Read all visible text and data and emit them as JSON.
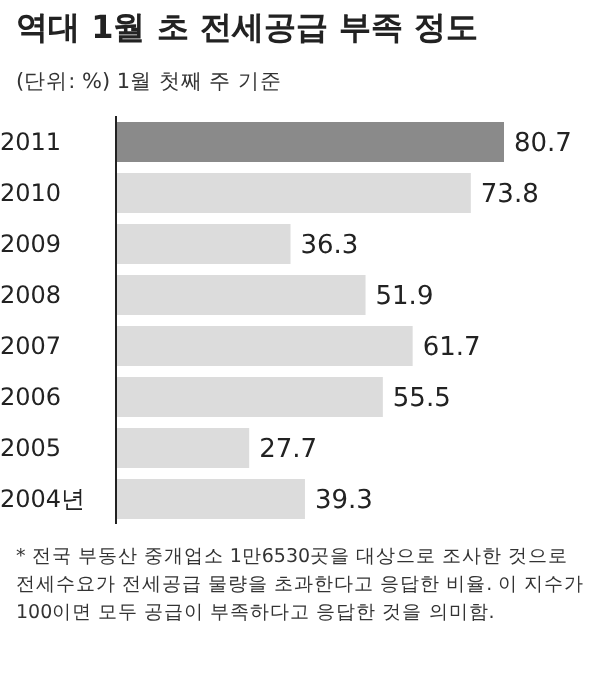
{
  "chart_data": {
    "type": "bar",
    "orientation": "horizontal",
    "title": "역대 1월 초 전세공급 부족 정도",
    "subtitle": "(단위: %) 1월 첫째 주 기준",
    "categories": [
      "2011",
      "2010",
      "2009",
      "2008",
      "2007",
      "2006",
      "2005",
      "2004년"
    ],
    "values": [
      80.7,
      73.8,
      36.3,
      51.9,
      61.7,
      55.5,
      27.7,
      39.3
    ],
    "colors": [
      "#8a8a8a",
      "#dcdcdc",
      "#dcdcdc",
      "#dcdcdc",
      "#dcdcdc",
      "#dcdcdc",
      "#dcdcdc",
      "#dcdcdc"
    ],
    "data_labels": true,
    "annotations": [
      "* 전국 부동산 중개업소 1만6530곳을 대상으로 조사한 것으로 전세수요가 전세공급 물량을 초과한다고 응답한 비율. 이 지수가 100이면 모두 공급이 부족하다고 응답한 것을 의미함."
    ]
  }
}
